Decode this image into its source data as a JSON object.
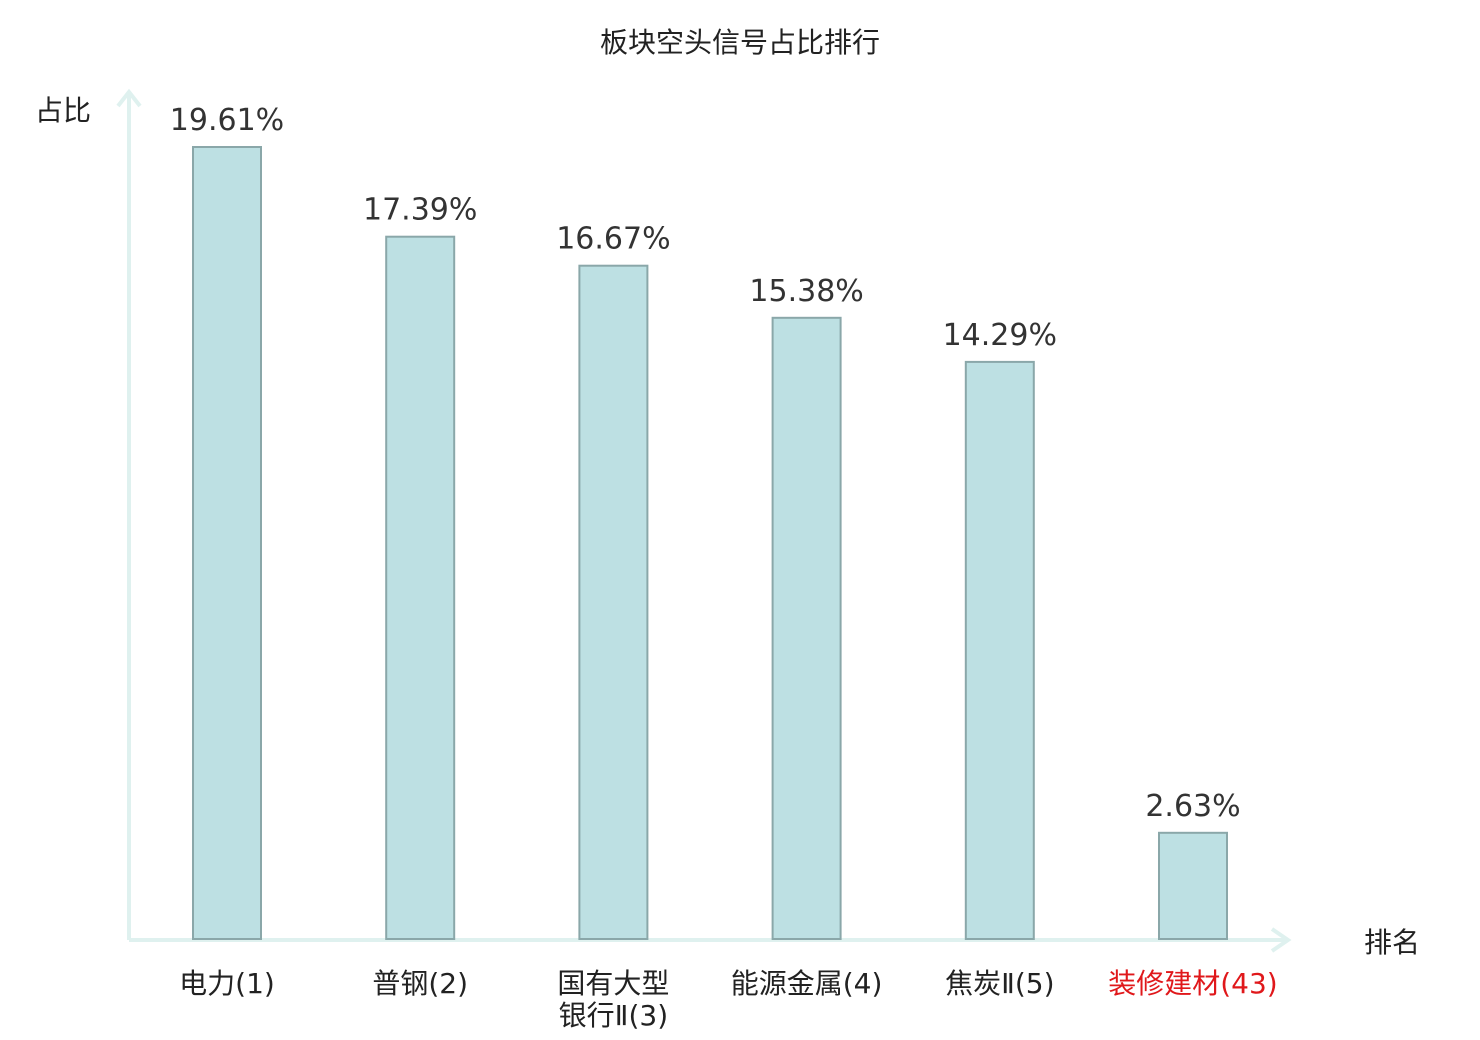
{
  "chart_data": {
    "type": "bar",
    "title": "板块空头信号占比排行",
    "ylabel": "占比",
    "xlabel": "排名",
    "categories": [
      [
        "电力(1)"
      ],
      [
        "普钢(2)"
      ],
      [
        "国有大型",
        "银行Ⅱ(3)"
      ],
      [
        "能源金属(4)"
      ],
      [
        "焦炭Ⅱ(5)"
      ],
      [
        "装修建材(43)"
      ]
    ],
    "values": [
      19.61,
      17.39,
      16.67,
      15.38,
      14.29,
      2.63
    ],
    "value_labels": [
      "19.61%",
      "17.39%",
      "16.67%",
      "15.38%",
      "14.29%",
      "2.63%"
    ],
    "highlight_index": 5,
    "ylim": [
      0,
      19.61
    ],
    "grid": false,
    "colors": {
      "bar_fill": "#bde0e3",
      "bar_stroke": "#8aa7a9",
      "axis": "#dff1ef",
      "text": "#333333",
      "highlight_text": "#e0181b"
    }
  }
}
